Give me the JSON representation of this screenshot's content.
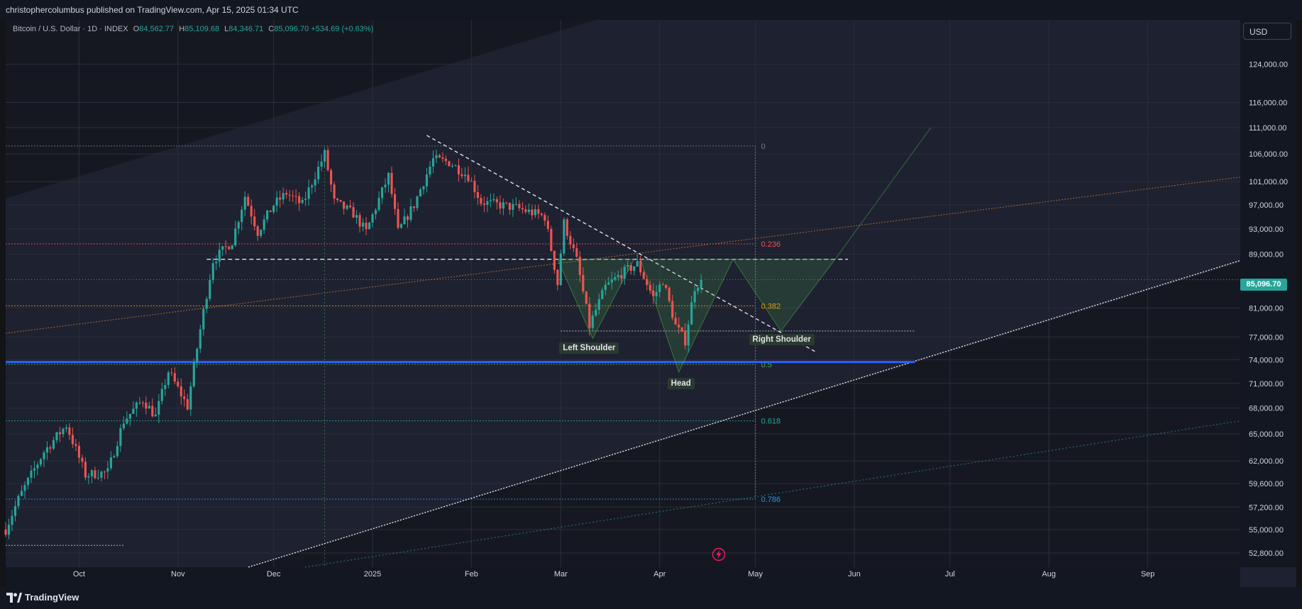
{
  "header": {
    "published": "christophercolumbus published on TradingView.com, Apr 15, 2025 01:34 UTC"
  },
  "legend": {
    "symbol": "Bitcoin / U.S. Dollar · 1D · INDEX",
    "open": "84,562.77",
    "high": "85,109.68",
    "low": "84,346.71",
    "close": "85,096.70",
    "change": "+534.69 (+0.63%)",
    "o_label": "O",
    "h_label": "H",
    "l_label": "L",
    "c_label": "C"
  },
  "currency_button": "USD",
  "last_price": "85,096.70",
  "footer": {
    "brand": "TradingView"
  },
  "colors": {
    "up": "#26a69a",
    "down": "#ef5350",
    "fib_0236": "#ef5350",
    "fib_0382": "#ff9800",
    "fib_05": "#4caf50",
    "fib_0618": "#26a69a",
    "fib_0786": "#2196f3",
    "support": "#2962ff"
  },
  "chart_data": {
    "type": "candlestick",
    "title": "Bitcoin / U.S. Dollar · 1D · INDEX",
    "x_range": [
      "2024-09-08",
      "2025-09-30"
    ],
    "x_ticks": [
      {
        "date": "2024-10-01",
        "label": "Oct"
      },
      {
        "date": "2024-11-01",
        "label": "Nov"
      },
      {
        "date": "2024-12-01",
        "label": "Dec"
      },
      {
        "date": "2025-01-01",
        "label": "2025"
      },
      {
        "date": "2025-02-01",
        "label": "Feb"
      },
      {
        "date": "2025-03-01",
        "label": "Mar"
      },
      {
        "date": "2025-04-01",
        "label": "Apr"
      },
      {
        "date": "2025-05-01",
        "label": "May"
      },
      {
        "date": "2025-06-01",
        "label": "Jun"
      },
      {
        "date": "2025-07-01",
        "label": "Jul"
      },
      {
        "date": "2025-08-01",
        "label": "Aug"
      },
      {
        "date": "2025-09-01",
        "label": "Sep"
      }
    ],
    "y_scale": "log",
    "ylim": [
      51500,
      134000
    ],
    "y_ticks": [
      "124,000.00",
      "116,000.00",
      "111,000.00",
      "106,000.00",
      "101,000.00",
      "97,000.00",
      "93,000.00",
      "89,000.00",
      "81,000.00",
      "77,000.00",
      "74,000.00",
      "71,000.00",
      "68,000.00",
      "65,000.00",
      "62,000.00",
      "59,600.00",
      "57,200.00",
      "55,000.00",
      "52,800.00"
    ],
    "price_path": [
      [
        "2024-09-08",
        55000
      ],
      [
        "2024-09-12",
        58000
      ],
      [
        "2024-09-20",
        63000
      ],
      [
        "2024-09-27",
        66000
      ],
      [
        "2024-10-03",
        60500
      ],
      [
        "2024-10-10",
        60800
      ],
      [
        "2024-10-15",
        66500
      ],
      [
        "2024-10-21",
        69000
      ],
      [
        "2024-10-25",
        67000
      ],
      [
        "2024-10-29",
        72500
      ],
      [
        "2024-11-04",
        68200
      ],
      [
        "2024-11-07",
        75500
      ],
      [
        "2024-11-12",
        88000
      ],
      [
        "2024-11-18",
        91000
      ],
      [
        "2024-11-22",
        98500
      ],
      [
        "2024-11-26",
        92500
      ],
      [
        "2024-12-01",
        97000
      ],
      [
        "2024-12-05",
        99000
      ],
      [
        "2024-12-10",
        97000
      ],
      [
        "2024-12-17",
        106000
      ],
      [
        "2024-12-20",
        97500
      ],
      [
        "2024-12-26",
        95500
      ],
      [
        "2024-12-30",
        92500
      ],
      [
        "2025-01-06",
        102000
      ],
      [
        "2025-01-09",
        92500
      ],
      [
        "2025-01-14",
        97000
      ],
      [
        "2025-01-20",
        105000
      ],
      [
        "2025-01-25",
        104500
      ],
      [
        "2025-01-31",
        102000
      ],
      [
        "2025-02-04",
        97500
      ],
      [
        "2025-02-15",
        96500
      ],
      [
        "2025-02-24",
        95000
      ],
      [
        "2025-02-28",
        84500
      ],
      [
        "2025-03-02",
        94000
      ],
      [
        "2025-03-06",
        88000
      ],
      [
        "2025-03-10",
        78500
      ],
      [
        "2025-03-15",
        84000
      ],
      [
        "2025-03-20",
        86000
      ],
      [
        "2025-03-25",
        87500
      ],
      [
        "2025-03-30",
        82500
      ],
      [
        "2025-04-02",
        85000
      ],
      [
        "2025-04-06",
        78500
      ],
      [
        "2025-04-09",
        76500
      ],
      [
        "2025-04-12",
        84000
      ],
      [
        "2025-04-14",
        85096.7
      ]
    ],
    "fibonacci": [
      {
        "level": "0",
        "price": 107500
      },
      {
        "level": "0.236",
        "price": 90600
      },
      {
        "level": "0.382",
        "price": 81300
      },
      {
        "level": "0.5",
        "price": 73400
      },
      {
        "level": "0.618",
        "price": 66500
      },
      {
        "level": "0.786",
        "price": 58000
      }
    ],
    "annotations": [
      {
        "text": "Left Shoulder",
        "date": "2025-03-11",
        "price": 76800
      },
      {
        "text": "Head",
        "date": "2025-04-07",
        "price": 72400
      },
      {
        "text": "Right Shoulder",
        "date": "2025-05-09",
        "price": 77800
      }
    ],
    "neckline_price": 88200,
    "support_price": 73700,
    "last_close": 85096.7
  }
}
